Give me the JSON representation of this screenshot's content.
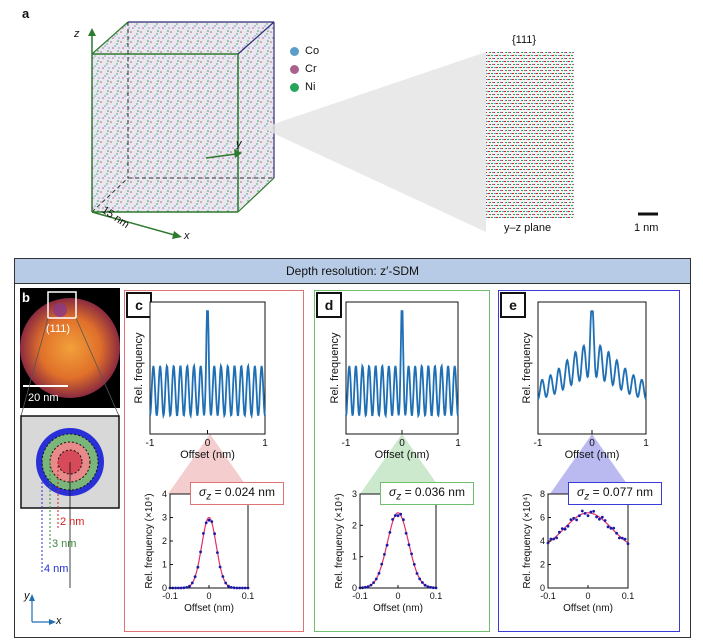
{
  "panel_a": {
    "label": "a",
    "axis_z": "z",
    "axis_y": "y",
    "axis_x": "x",
    "size_label": "15 nm",
    "legend": [
      {
        "name": "Co",
        "color": "#5b9ec9"
      },
      {
        "name": "Cr",
        "color": "#a8628e"
      },
      {
        "name": "Ni",
        "color": "#27a35a"
      }
    ],
    "plane_title": "{111}",
    "plane_caption": "y–z plane",
    "scale_label": "1 nm"
  },
  "banner": {
    "text": "Depth resolution: z′-SDM"
  },
  "panel_b": {
    "label": "b",
    "pole_label": "(111)",
    "scale_label": "20 nm",
    "ring_labels": [
      "2 nm",
      "3 nm",
      "4 nm"
    ],
    "ring_colors": [
      "#d62020",
      "#3a8a3a",
      "#2430d0"
    ],
    "axis_y": "y",
    "axis_x": "x"
  },
  "colors": {
    "panel_c": "#e07474",
    "panel_d": "#6fbf6f",
    "panel_e": "#3a3ad8",
    "line": "#1f6fb5",
    "fit": "#e0306a",
    "banner": "#b8cbe6"
  },
  "chart_data": [
    {
      "panel": "c",
      "type": "line",
      "xlabel": "Offset (nm)",
      "ylabel": "Rel. frequency",
      "xlim": [
        -1,
        1
      ],
      "xticks": [
        "-1",
        "0",
        "1"
      ],
      "peaks": 17,
      "profile": "sharp-center"
    },
    {
      "panel": "c-inset",
      "type": "scatter",
      "xlabel": "Offset (nm)",
      "ylabel": "Rel. frequency (×10⁴)",
      "xlim": [
        -0.1,
        0.1
      ],
      "ylim": [
        0,
        4
      ],
      "xticks": [
        "-0.1",
        "0",
        "0.1"
      ],
      "yticks": [
        "0",
        "1",
        "2",
        "3",
        "4"
      ],
      "gauss_peak": 3.0,
      "sigma_nm": 0.024,
      "sigma_label": "σ",
      "sigma_sub": "z",
      "sigma_value": " = 0.024 nm"
    },
    {
      "panel": "d",
      "type": "line",
      "xlabel": "Offset (nm)",
      "ylabel": "Rel. frequency",
      "xlim": [
        -1,
        1
      ],
      "xticks": [
        "-1",
        "0",
        "1"
      ],
      "peaks": 17,
      "profile": "sharp-center"
    },
    {
      "panel": "d-inset",
      "type": "scatter",
      "xlabel": "Offset (nm)",
      "ylabel": "Rel. frequency (×10⁴)",
      "xlim": [
        -0.1,
        0.1
      ],
      "ylim": [
        0,
        3
      ],
      "xticks": [
        "-0.1",
        "0",
        "0.1"
      ],
      "yticks": [
        "0",
        "1",
        "2",
        "3"
      ],
      "gauss_peak": 2.4,
      "sigma_nm": 0.036,
      "sigma_label": "σ",
      "sigma_sub": "z",
      "sigma_value": " = 0.036 nm"
    },
    {
      "panel": "e",
      "type": "line",
      "xlabel": "Offset (nm)",
      "ylabel": "Rel. frequency",
      "xlim": [
        -1,
        1
      ],
      "xticks": [
        "-1",
        "0",
        "1"
      ],
      "peaks": 13,
      "profile": "broad-center"
    },
    {
      "panel": "e-inset",
      "type": "scatter",
      "xlabel": "Offset (nm)",
      "ylabel": "Rel. frequency (×10⁴)",
      "xlim": [
        -0.1,
        0.1
      ],
      "ylim": [
        0,
        8
      ],
      "xticks": [
        "-0.1",
        "0",
        "0.1"
      ],
      "yticks": [
        "0",
        "2",
        "4",
        "6",
        "8"
      ],
      "gauss_peak": 6.4,
      "baseline": 3.0,
      "sigma_nm": 0.077,
      "sigma_label": "σ",
      "sigma_sub": "z",
      "sigma_value": " = 0.077 nm"
    }
  ]
}
